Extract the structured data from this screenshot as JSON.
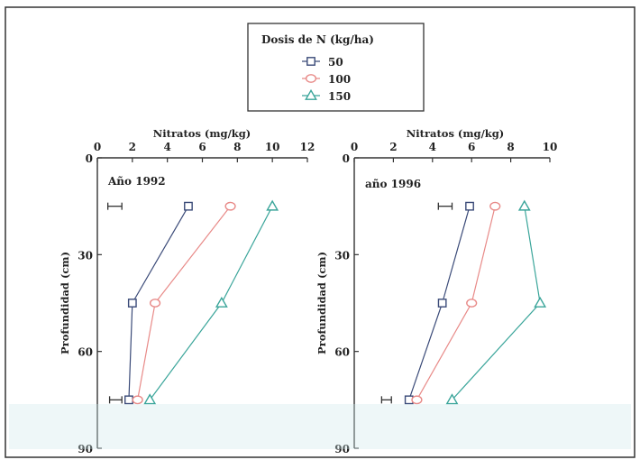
{
  "legend": {
    "title": "Dosis de N (kg/ha)",
    "entries": [
      {
        "label": "50",
        "marker": "square",
        "color": "#3a4a78"
      },
      {
        "label": "100",
        "marker": "circle",
        "color": "#e88a88"
      },
      {
        "label": "150",
        "marker": "triangle",
        "color": "#3aa59a"
      }
    ]
  },
  "chart_data": [
    {
      "type": "line",
      "panel_label": "Año 1992",
      "xlabel": "Nitratos (mg/kg)",
      "ylabel": "Profundidad (cm)",
      "xlim": [
        0,
        12
      ],
      "ylim": [
        0,
        90
      ],
      "y_inverted": true,
      "x_ticks": [
        "0",
        "2",
        "4",
        "6",
        "8",
        "10",
        "12"
      ],
      "y_ticks": [
        "0",
        "30",
        "60",
        "90"
      ],
      "depths": [
        15,
        45,
        75
      ],
      "series": [
        {
          "name": "50",
          "values": [
            5.2,
            2.0,
            1.8
          ]
        },
        {
          "name": "100",
          "values": [
            7.6,
            3.3,
            2.3
          ]
        },
        {
          "name": "150",
          "values": [
            10.0,
            7.1,
            3.0
          ]
        }
      ],
      "error_bars": [
        {
          "depth": 15,
          "x_min": 0.6,
          "x_max": 1.4
        },
        {
          "depth": 75,
          "x_min": 0.7,
          "x_max": 1.4
        }
      ]
    },
    {
      "type": "line",
      "panel_label": "año 1996",
      "xlabel": "Nitratos (mg/kg)",
      "ylabel": "Profundidad (cm)",
      "xlim": [
        0,
        10
      ],
      "ylim": [
        0,
        90
      ],
      "y_inverted": true,
      "x_ticks": [
        "0",
        "2",
        "4",
        "6",
        "8",
        "10"
      ],
      "y_ticks": [
        "0",
        "30",
        "60",
        "90"
      ],
      "depths": [
        15,
        45,
        75
      ],
      "series": [
        {
          "name": "50",
          "values": [
            5.9,
            4.5,
            2.8
          ]
        },
        {
          "name": "100",
          "values": [
            7.2,
            6.0,
            3.2
          ]
        },
        {
          "name": "150",
          "values": [
            8.7,
            9.5,
            5.0
          ]
        }
      ],
      "error_bars": [
        {
          "depth": 15,
          "x_min": 4.3,
          "x_max": 5.0
        },
        {
          "depth": 75,
          "x_min": 1.4,
          "x_max": 1.9
        }
      ]
    }
  ]
}
